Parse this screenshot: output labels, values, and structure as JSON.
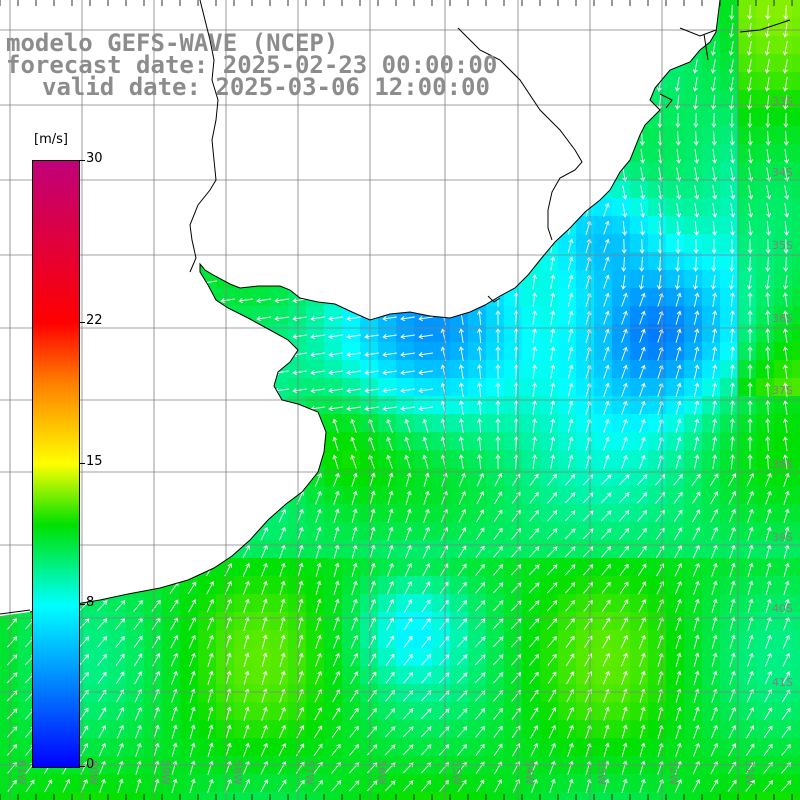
{
  "title": {
    "line1": "modelo GEFS-WAVE (NCEP)",
    "line2": "forecast date: 2025-02-23 00:00:00",
    "line3": "valid date: 2025-03-06 12:00:00"
  },
  "colorbar": {
    "unit": "[m/s]",
    "min": 0,
    "max": 30,
    "ticks": [
      "0",
      "8",
      "15",
      "22",
      "30"
    ],
    "stops": [
      {
        "value": 0,
        "color": "#0000ff"
      },
      {
        "value": 4,
        "color": "#0080ff"
      },
      {
        "value": 8,
        "color": "#00ffff"
      },
      {
        "value": 12,
        "color": "#00e000"
      },
      {
        "value": 15,
        "color": "#ffff00"
      },
      {
        "value": 19,
        "color": "#ff8000"
      },
      {
        "value": 22,
        "color": "#ff0000"
      },
      {
        "value": 30,
        "color": "#c0007a"
      }
    ]
  },
  "map": {
    "lat_labels": [
      "33S",
      "34S",
      "35S",
      "36S",
      "37S",
      "38S",
      "39S",
      "40S",
      "41S"
    ],
    "lon_labels": [
      "61W",
      "60W",
      "59W",
      "58W",
      "57W",
      "56W",
      "55W",
      "54W",
      "53W",
      "52W",
      "51W"
    ],
    "land_color": "#ffffff",
    "coast_color": "#000000",
    "grid_color": "#808080",
    "arrow_color": "#ffffff",
    "lat_label_color": "#808080"
  }
}
